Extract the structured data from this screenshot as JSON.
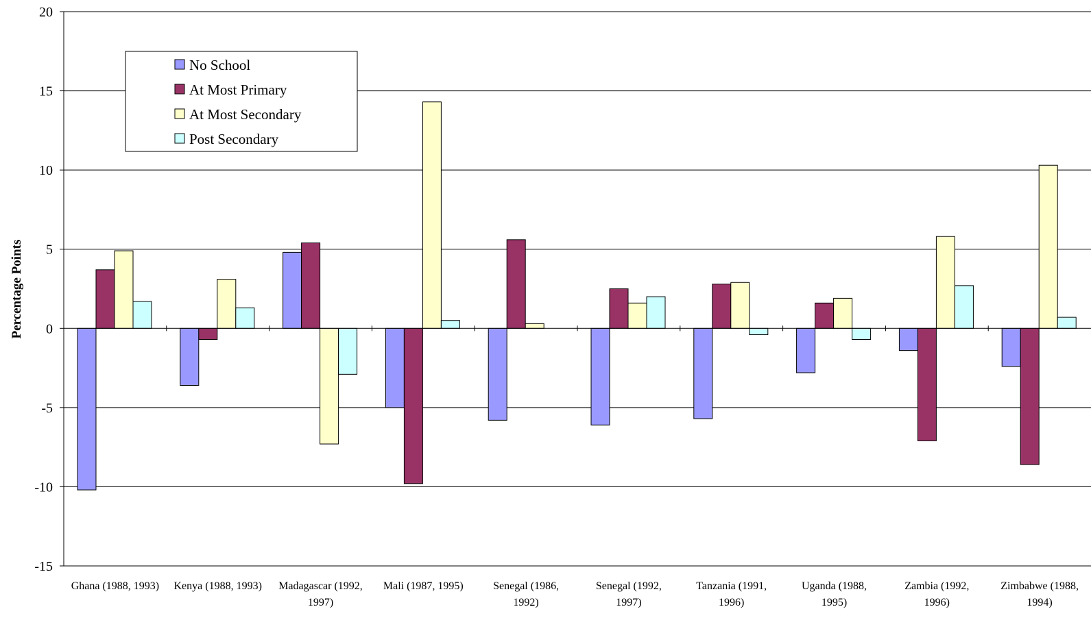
{
  "chart_data": {
    "type": "bar",
    "title": "",
    "xlabel": "",
    "ylabel": "Percentage Points",
    "ylim": [
      -15,
      20
    ],
    "yticks": [
      -15,
      -10,
      -5,
      0,
      5,
      10,
      15,
      20
    ],
    "grid": true,
    "legend_position": "top-left",
    "categories": [
      [
        "Ghana (1988, 1993)"
      ],
      [
        "Kenya (1988, 1993)"
      ],
      [
        "Madagascar (1992,",
        "1997)"
      ],
      [
        "Mali (1987, 1995)"
      ],
      [
        "Senegal (1986,",
        "1992)"
      ],
      [
        "Senegal (1992,",
        "1997)"
      ],
      [
        "Tanzania (1991,",
        "1996)"
      ],
      [
        "Uganda (1988,",
        "1995)"
      ],
      [
        "Zambia (1992,",
        "1996)"
      ],
      [
        "Zimbabwe (1988,",
        "1994)"
      ]
    ],
    "series": [
      {
        "name": "No School",
        "color": "#9999ff",
        "values": [
          -10.2,
          -3.6,
          4.8,
          -5.0,
          -5.8,
          -6.1,
          -5.7,
          -2.8,
          -1.4,
          -2.4
        ]
      },
      {
        "name": "At Most Primary",
        "color": "#993366",
        "values": [
          3.7,
          -0.7,
          5.4,
          -9.8,
          5.6,
          2.5,
          2.8,
          1.6,
          -7.1,
          -8.6
        ]
      },
      {
        "name": "At Most Secondary",
        "color": "#ffffcc",
        "values": [
          4.9,
          3.1,
          -7.3,
          14.3,
          0.3,
          1.6,
          2.9,
          1.9,
          5.8,
          10.3
        ]
      },
      {
        "name": "Post Secondary",
        "color": "#ccffff",
        "values": [
          1.7,
          1.3,
          -2.9,
          0.5,
          0.0,
          2.0,
          -0.4,
          -0.7,
          2.7,
          0.7
        ]
      }
    ]
  }
}
